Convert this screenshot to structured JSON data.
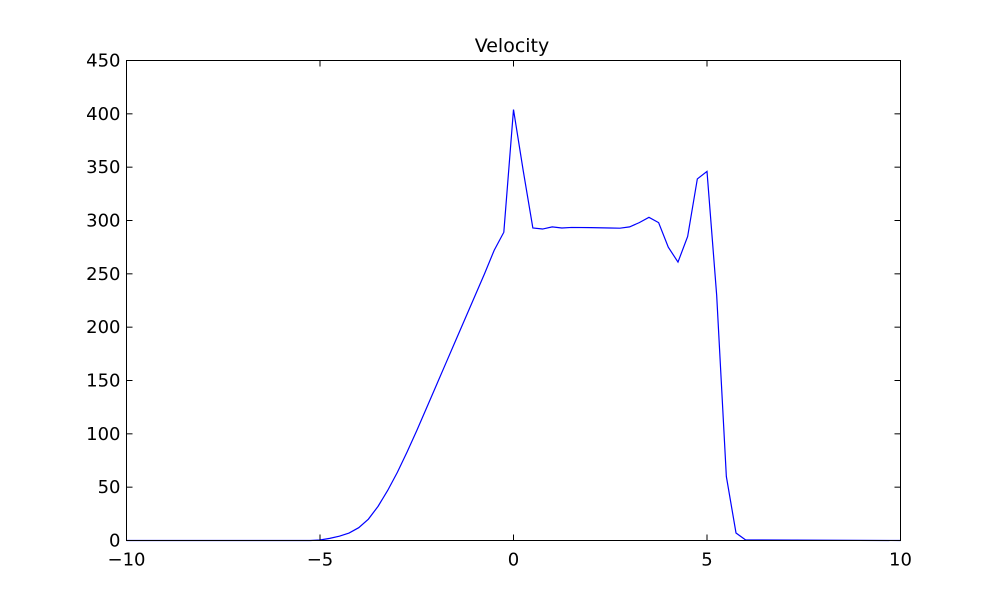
{
  "chart_data": {
    "type": "line",
    "title": "Velocity",
    "xlabel": "",
    "ylabel": "",
    "xlim": [
      -10,
      10
    ],
    "ylim": [
      0,
      450
    ],
    "x_ticks": [
      -10,
      -5,
      0,
      5,
      10
    ],
    "x_tick_labels": [
      "−10",
      "−5",
      "0",
      "5",
      "10"
    ],
    "y_ticks": [
      0,
      50,
      100,
      150,
      200,
      250,
      300,
      350,
      400,
      450
    ],
    "y_tick_labels": [
      "0",
      "50",
      "100",
      "150",
      "200",
      "250",
      "300",
      "350",
      "400",
      "450"
    ],
    "grid": false,
    "legend": "none",
    "series": [
      {
        "color": "#0000ff",
        "points": [
          [
            -10,
            0
          ],
          [
            -5.25,
            0
          ],
          [
            -5,
            0.5
          ],
          [
            -4.75,
            2
          ],
          [
            -4.5,
            4
          ],
          [
            -4.25,
            7
          ],
          [
            -4,
            12
          ],
          [
            -3.75,
            20
          ],
          [
            -3.5,
            32
          ],
          [
            -3.25,
            47
          ],
          [
            -3,
            64
          ],
          [
            -2.75,
            83
          ],
          [
            -2.5,
            103
          ],
          [
            -2.25,
            124
          ],
          [
            -2,
            145
          ],
          [
            -1.75,
            166
          ],
          [
            -1.5,
            187
          ],
          [
            -1.25,
            208
          ],
          [
            -1,
            229
          ],
          [
            -0.75,
            250
          ],
          [
            -0.5,
            272
          ],
          [
            -0.25,
            289
          ],
          [
            0,
            404
          ],
          [
            0.25,
            347
          ],
          [
            0.5,
            293
          ],
          [
            0.75,
            292
          ],
          [
            1,
            294
          ],
          [
            1.25,
            293
          ],
          [
            1.5,
            293.5
          ],
          [
            2,
            293.3
          ],
          [
            2.5,
            293
          ],
          [
            2.75,
            292.8
          ],
          [
            3,
            294
          ],
          [
            3.25,
            298
          ],
          [
            3.5,
            303
          ],
          [
            3.75,
            298
          ],
          [
            4,
            275
          ],
          [
            4.25,
            261
          ],
          [
            4.5,
            285
          ],
          [
            4.75,
            339
          ],
          [
            5,
            346
          ],
          [
            5.25,
            230
          ],
          [
            5.5,
            60
          ],
          [
            5.75,
            7
          ],
          [
            6,
            0.5
          ],
          [
            10,
            0
          ]
        ]
      }
    ]
  }
}
